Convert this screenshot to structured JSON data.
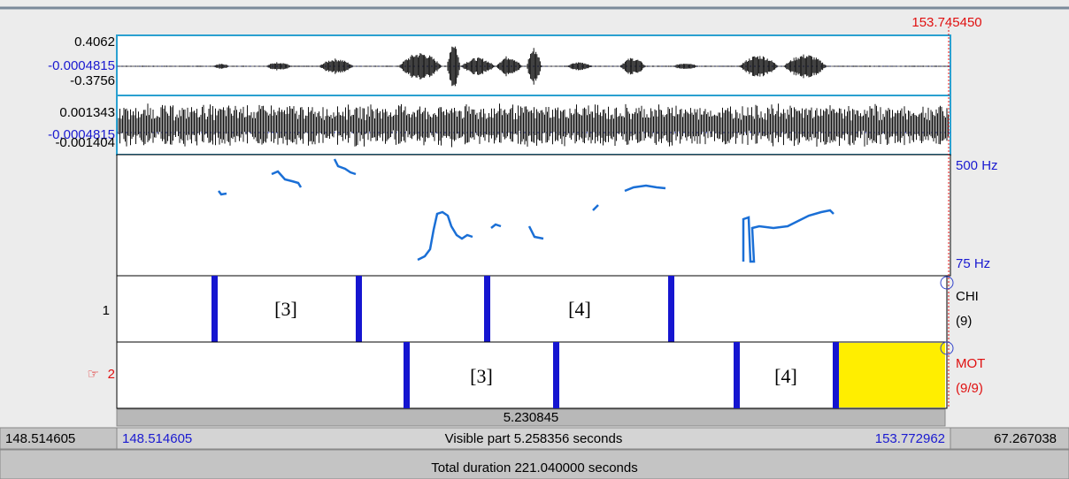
{
  "cursor_time": "153.745450",
  "channels": [
    {
      "max": "0.4062",
      "mid": "-0.0004815",
      "min": "-0.3756"
    },
    {
      "max": "0.001343",
      "mid": "-0.0004815",
      "min": "-0.001404"
    }
  ],
  "pitch": {
    "top": "500 Hz",
    "bottom": "75 Hz"
  },
  "tiers": [
    {
      "number": "1",
      "name": "CHI",
      "count": "(9)",
      "intervals": [
        "[3]",
        "[4]"
      ]
    },
    {
      "pointer": "☞",
      "number": "2",
      "name": "MOT",
      "count": "(9/9)",
      "intervals": [
        "[3]",
        "[4]"
      ]
    }
  ],
  "selection_duration": "5.230845",
  "bottom_bar": {
    "left_time": "148.514605",
    "visible_start": "148.514605",
    "visible_label": "Visible part 5.258356 seconds",
    "visible_end": "153.772962",
    "right_time": "67.267038"
  },
  "total_duration": "Total duration 221.040000 seconds"
}
